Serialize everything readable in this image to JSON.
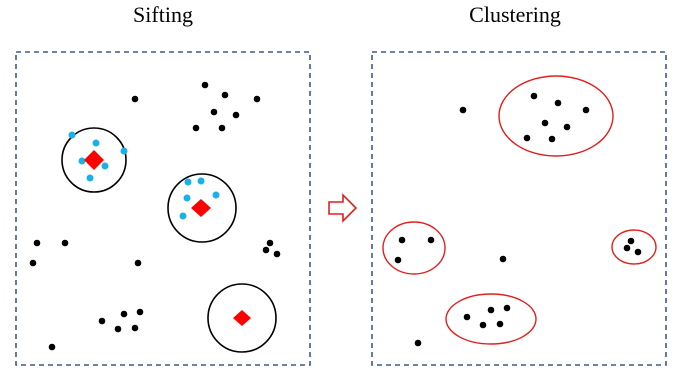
{
  "titles": {
    "left": "Sifting",
    "right": "Clustering"
  },
  "colors": {
    "frame": "#3f5a8a",
    "point": "#000000",
    "neighbor_point": "#1ab0e8",
    "center_marker": "#ff0000",
    "cluster_ellipse": "#e0201e",
    "sift_circle": "#000000",
    "arrow": "#e02020"
  },
  "icons": {
    "arrow": "hollow-right-arrow-icon",
    "center": "red-diamond-center-icon"
  }
}
